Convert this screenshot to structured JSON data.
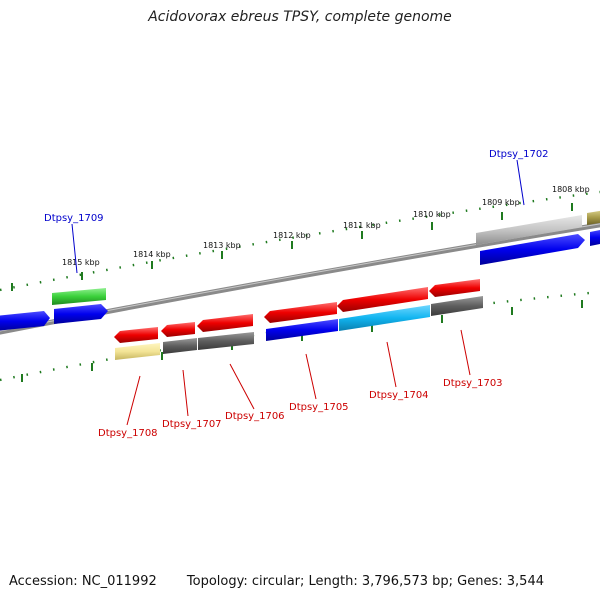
{
  "title": "Acidovorax ebreus TPSY, complete genome",
  "accession": "Accession: NC_011992",
  "summary": "Topology: circular; Length: 3,796,573 bp; Genes: 3,544",
  "colors": {
    "backbone": "#8a8a8a",
    "tick": "#1f7a1f",
    "label_plus": "#0000cc",
    "label_minus": "#cc0000"
  },
  "scale_labels": [
    "1815 kbp",
    "1814 kbp",
    "1813 kbp",
    "1812 kbp",
    "1811 kbp",
    "1810 kbp",
    "1809 kbp",
    "1808 kbp"
  ],
  "gene_labels": [
    "Dtpsy_1702",
    "Dtpsy_1709",
    "Dtpsy_1708",
    "Dtpsy_1707",
    "Dtpsy_1706",
    "Dtpsy_1705",
    "Dtpsy_1704",
    "Dtpsy_1703"
  ]
}
